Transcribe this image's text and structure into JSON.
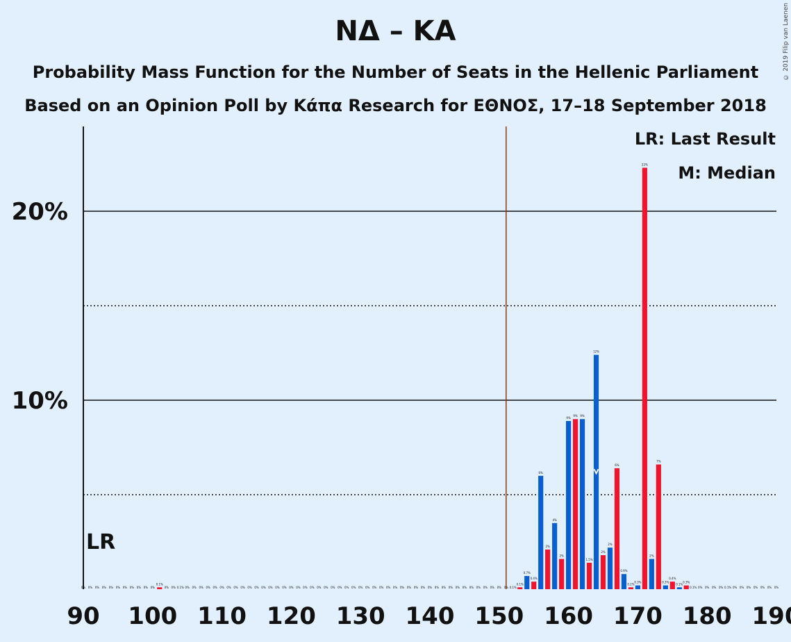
{
  "chart_data": {
    "type": "bar",
    "title": "ΝΔ – ΚΑ",
    "subtitle": "Probability Mass Function for the Number of Seats in the Hellenic Parliament",
    "subtitle2": "Based on an Opinion Poll by Κάπα Research for ΕΘΝΟΣ, 17–18 September 2018",
    "copyright": "© 2019 Filip van Laenen",
    "xlim": [
      90,
      190
    ],
    "ylim": [
      0,
      24
    ],
    "x_tick_labels": [
      "90",
      "100",
      "110",
      "120",
      "130",
      "140",
      "150",
      "160",
      "170",
      "180",
      "190"
    ],
    "y_tick_labels": [
      "10%",
      "20%"
    ],
    "y_solid_gridlines": [
      10,
      20
    ],
    "y_dotted_gridlines": [
      5,
      15
    ],
    "majority_line_x": 151,
    "last_result_label": "LR",
    "median_seat": 164,
    "legend": [
      "LR: Last Result",
      "M: Median"
    ],
    "colors": {
      "blue": "#0a5fd0",
      "red": "#f0142d",
      "majority": "#8b3a0e",
      "background": "#e2f0fe"
    },
    "bars": [
      {
        "x": 101,
        "value": 0.1,
        "label": "0.1%"
      },
      {
        "x": 104,
        "value": 0.0,
        "label": "0.1%"
      },
      {
        "x": 152,
        "value": 0.0,
        "label": "0.1%"
      },
      {
        "x": 153,
        "value": 0.1,
        "label": "0.1%"
      },
      {
        "x": 154,
        "value": 0.7,
        "label": "0.7%"
      },
      {
        "x": 155,
        "value": 0.4,
        "label": "0.4%"
      },
      {
        "x": 156,
        "value": 6.0,
        "label": "6%"
      },
      {
        "x": 157,
        "value": 2.1,
        "label": "2%"
      },
      {
        "x": 158,
        "value": 3.5,
        "label": "4%"
      },
      {
        "x": 159,
        "value": 1.6,
        "label": "2%"
      },
      {
        "x": 160,
        "value": 8.9,
        "label": "9%"
      },
      {
        "x": 161,
        "value": 9.0,
        "label": "9%"
      },
      {
        "x": 162,
        "value": 9.0,
        "label": "9%"
      },
      {
        "x": 163,
        "value": 1.4,
        "label": "1.5%"
      },
      {
        "x": 164,
        "value": 12.4,
        "label": "12%"
      },
      {
        "x": 165,
        "value": 1.8,
        "label": "2%"
      },
      {
        "x": 166,
        "value": 2.2,
        "label": "2%"
      },
      {
        "x": 167,
        "value": 6.4,
        "label": "6%"
      },
      {
        "x": 168,
        "value": 0.8,
        "label": "0.9%"
      },
      {
        "x": 169,
        "value": 0.1,
        "label": "0.2%"
      },
      {
        "x": 170,
        "value": 0.2,
        "label": "0.3%"
      },
      {
        "x": 171,
        "value": 22.3,
        "label": "22%"
      },
      {
        "x": 172,
        "value": 1.6,
        "label": "2%"
      },
      {
        "x": 173,
        "value": 6.6,
        "label": "7%"
      },
      {
        "x": 174,
        "value": 0.2,
        "label": "0.3%"
      },
      {
        "x": 175,
        "value": 0.4,
        "label": "0.4%"
      },
      {
        "x": 176,
        "value": 0.1,
        "label": "0.1%"
      },
      {
        "x": 177,
        "value": 0.2,
        "label": "0.3%"
      },
      {
        "x": 178,
        "value": 0.0,
        "label": "0.1%"
      },
      {
        "x": 183,
        "value": 0.0,
        "label": "0.1%"
      }
    ],
    "zero_label": "0%"
  }
}
